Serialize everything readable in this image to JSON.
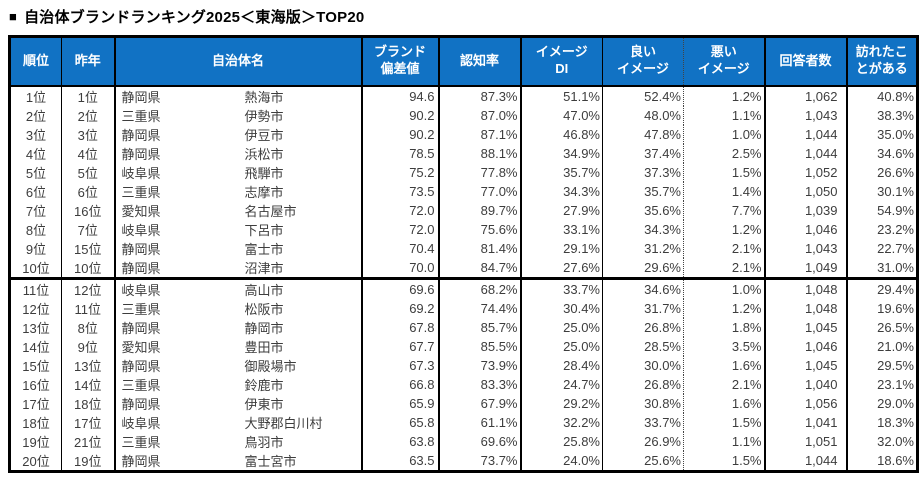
{
  "title": {
    "bullet": "■",
    "text": "自治体ブランドランキング2025＜東海版＞TOP20"
  },
  "accent_color": "#1172c4",
  "table": {
    "headers": [
      "順位",
      "昨年",
      "自治体名",
      "ブランド\n偏差値",
      "認知率",
      "イメージ\nDI",
      "良い\nイメージ",
      "悪い\nイメージ",
      "回答者数",
      "訪れたこ\nとがある"
    ],
    "rows": [
      {
        "rank": "1位",
        "last_year": "1位",
        "prefecture": "静岡県",
        "city": "熱海市",
        "brand_score": "94.6",
        "awareness": "87.3%",
        "image_di": "51.1%",
        "good_image": "52.4%",
        "bad_image": "1.2%",
        "respondents": "1,062",
        "visited": "40.8%"
      },
      {
        "rank": "2位",
        "last_year": "2位",
        "prefecture": "三重県",
        "city": "伊勢市",
        "brand_score": "90.2",
        "awareness": "87.0%",
        "image_di": "47.0%",
        "good_image": "48.0%",
        "bad_image": "1.1%",
        "respondents": "1,043",
        "visited": "38.3%"
      },
      {
        "rank": "3位",
        "last_year": "3位",
        "prefecture": "静岡県",
        "city": "伊豆市",
        "brand_score": "90.2",
        "awareness": "87.1%",
        "image_di": "46.8%",
        "good_image": "47.8%",
        "bad_image": "1.0%",
        "respondents": "1,044",
        "visited": "35.0%"
      },
      {
        "rank": "4位",
        "last_year": "4位",
        "prefecture": "静岡県",
        "city": "浜松市",
        "brand_score": "78.5",
        "awareness": "88.1%",
        "image_di": "34.9%",
        "good_image": "37.4%",
        "bad_image": "2.5%",
        "respondents": "1,044",
        "visited": "34.6%"
      },
      {
        "rank": "5位",
        "last_year": "5位",
        "prefecture": "岐阜県",
        "city": "飛騨市",
        "brand_score": "75.2",
        "awareness": "77.8%",
        "image_di": "35.7%",
        "good_image": "37.3%",
        "bad_image": "1.5%",
        "respondents": "1,052",
        "visited": "26.6%"
      },
      {
        "rank": "6位",
        "last_year": "6位",
        "prefecture": "三重県",
        "city": "志摩市",
        "brand_score": "73.5",
        "awareness": "77.0%",
        "image_di": "34.3%",
        "good_image": "35.7%",
        "bad_image": "1.4%",
        "respondents": "1,050",
        "visited": "30.1%"
      },
      {
        "rank": "7位",
        "last_year": "16位",
        "prefecture": "愛知県",
        "city": "名古屋市",
        "brand_score": "72.0",
        "awareness": "89.7%",
        "image_di": "27.9%",
        "good_image": "35.6%",
        "bad_image": "7.7%",
        "respondents": "1,039",
        "visited": "54.9%"
      },
      {
        "rank": "8位",
        "last_year": "7位",
        "prefecture": "岐阜県",
        "city": "下呂市",
        "brand_score": "72.0",
        "awareness": "75.6%",
        "image_di": "33.1%",
        "good_image": "34.3%",
        "bad_image": "1.2%",
        "respondents": "1,046",
        "visited": "23.2%"
      },
      {
        "rank": "9位",
        "last_year": "15位",
        "prefecture": "静岡県",
        "city": "富士市",
        "brand_score": "70.4",
        "awareness": "81.4%",
        "image_di": "29.1%",
        "good_image": "31.2%",
        "bad_image": "2.1%",
        "respondents": "1,043",
        "visited": "22.7%"
      },
      {
        "rank": "10位",
        "last_year": "10位",
        "prefecture": "静岡県",
        "city": "沼津市",
        "brand_score": "70.0",
        "awareness": "84.7%",
        "image_di": "27.6%",
        "good_image": "29.6%",
        "bad_image": "2.1%",
        "respondents": "1,049",
        "visited": "31.0%"
      },
      {
        "rank": "11位",
        "last_year": "12位",
        "prefecture": "岐阜県",
        "city": "高山市",
        "brand_score": "69.6",
        "awareness": "68.2%",
        "image_di": "33.7%",
        "good_image": "34.6%",
        "bad_image": "1.0%",
        "respondents": "1,048",
        "visited": "29.4%"
      },
      {
        "rank": "12位",
        "last_year": "11位",
        "prefecture": "三重県",
        "city": "松阪市",
        "brand_score": "69.2",
        "awareness": "74.4%",
        "image_di": "30.4%",
        "good_image": "31.7%",
        "bad_image": "1.2%",
        "respondents": "1,048",
        "visited": "19.6%"
      },
      {
        "rank": "13位",
        "last_year": "8位",
        "prefecture": "静岡県",
        "city": "静岡市",
        "brand_score": "67.8",
        "awareness": "85.7%",
        "image_di": "25.0%",
        "good_image": "26.8%",
        "bad_image": "1.8%",
        "respondents": "1,045",
        "visited": "26.5%"
      },
      {
        "rank": "14位",
        "last_year": "9位",
        "prefecture": "愛知県",
        "city": "豊田市",
        "brand_score": "67.7",
        "awareness": "85.5%",
        "image_di": "25.0%",
        "good_image": "28.5%",
        "bad_image": "3.5%",
        "respondents": "1,046",
        "visited": "21.0%"
      },
      {
        "rank": "15位",
        "last_year": "13位",
        "prefecture": "静岡県",
        "city": "御殿場市",
        "brand_score": "67.3",
        "awareness": "73.9%",
        "image_di": "28.4%",
        "good_image": "30.0%",
        "bad_image": "1.6%",
        "respondents": "1,045",
        "visited": "29.5%"
      },
      {
        "rank": "16位",
        "last_year": "14位",
        "prefecture": "三重県",
        "city": "鈴鹿市",
        "brand_score": "66.8",
        "awareness": "83.3%",
        "image_di": "24.7%",
        "good_image": "26.8%",
        "bad_image": "2.1%",
        "respondents": "1,040",
        "visited": "23.1%"
      },
      {
        "rank": "17位",
        "last_year": "18位",
        "prefecture": "静岡県",
        "city": "伊東市",
        "brand_score": "65.9",
        "awareness": "67.9%",
        "image_di": "29.2%",
        "good_image": "30.8%",
        "bad_image": "1.6%",
        "respondents": "1,056",
        "visited": "29.0%"
      },
      {
        "rank": "18位",
        "last_year": "17位",
        "prefecture": "岐阜県",
        "city": "大野郡白川村",
        "brand_score": "65.8",
        "awareness": "61.1%",
        "image_di": "32.2%",
        "good_image": "33.7%",
        "bad_image": "1.5%",
        "respondents": "1,041",
        "visited": "18.3%"
      },
      {
        "rank": "19位",
        "last_year": "21位",
        "prefecture": "三重県",
        "city": "鳥羽市",
        "brand_score": "63.8",
        "awareness": "69.6%",
        "image_di": "25.8%",
        "good_image": "26.9%",
        "bad_image": "1.1%",
        "respondents": "1,051",
        "visited": "32.0%"
      },
      {
        "rank": "20位",
        "last_year": "19位",
        "prefecture": "静岡県",
        "city": "富士宮市",
        "brand_score": "63.5",
        "awareness": "73.7%",
        "image_di": "24.0%",
        "good_image": "25.6%",
        "bad_image": "1.5%",
        "respondents": "1,044",
        "visited": "18.6%"
      }
    ]
  }
}
